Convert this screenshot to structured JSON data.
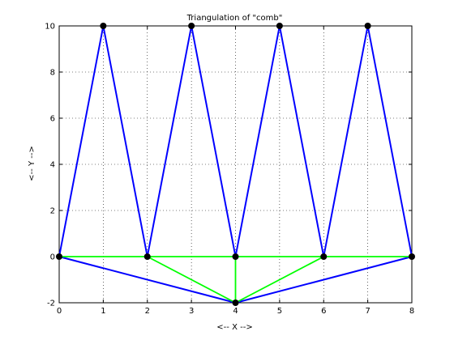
{
  "chart_data": {
    "type": "line",
    "title": "Triangulation of \"comb\"",
    "xlabel": "<-- X -->",
    "ylabel": "<-- Y -->",
    "xlim": [
      0,
      8
    ],
    "ylim": [
      -2,
      10
    ],
    "xticks": [
      0,
      1,
      2,
      3,
      4,
      5,
      6,
      7,
      8
    ],
    "yticks": [
      -2,
      0,
      2,
      4,
      6,
      8,
      10
    ],
    "grid": true,
    "colors": {
      "boundary": "#0000ff",
      "interior": "#00ff00",
      "vertex": "#000000",
      "grid": "#000000"
    },
    "vertices": [
      [
        0,
        0
      ],
      [
        1,
        10
      ],
      [
        2,
        0
      ],
      [
        3,
        10
      ],
      [
        4,
        0
      ],
      [
        5,
        10
      ],
      [
        6,
        0
      ],
      [
        7,
        10
      ],
      [
        8,
        0
      ],
      [
        4,
        -2
      ]
    ],
    "series": [
      {
        "role": "boundary",
        "segments": [
          [
            [
              0,
              0
            ],
            [
              1,
              10
            ]
          ],
          [
            [
              1,
              10
            ],
            [
              2,
              0
            ]
          ],
          [
            [
              2,
              0
            ],
            [
              3,
              10
            ]
          ],
          [
            [
              3,
              10
            ],
            [
              4,
              0
            ]
          ],
          [
            [
              4,
              0
            ],
            [
              5,
              10
            ]
          ],
          [
            [
              5,
              10
            ],
            [
              6,
              0
            ]
          ],
          [
            [
              6,
              0
            ],
            [
              7,
              10
            ]
          ],
          [
            [
              7,
              10
            ],
            [
              8,
              0
            ]
          ],
          [
            [
              8,
              0
            ],
            [
              4,
              -2
            ]
          ],
          [
            [
              4,
              -2
            ],
            [
              0,
              0
            ]
          ]
        ]
      },
      {
        "role": "interior",
        "segments": [
          [
            [
              0,
              0
            ],
            [
              2,
              0
            ]
          ],
          [
            [
              2,
              0
            ],
            [
              4,
              0
            ]
          ],
          [
            [
              4,
              0
            ],
            [
              6,
              0
            ]
          ],
          [
            [
              6,
              0
            ],
            [
              8,
              0
            ]
          ],
          [
            [
              2,
              0
            ],
            [
              4,
              -2
            ]
          ],
          [
            [
              4,
              0
            ],
            [
              4,
              -2
            ]
          ],
          [
            [
              6,
              0
            ],
            [
              4,
              -2
            ]
          ]
        ]
      }
    ]
  }
}
